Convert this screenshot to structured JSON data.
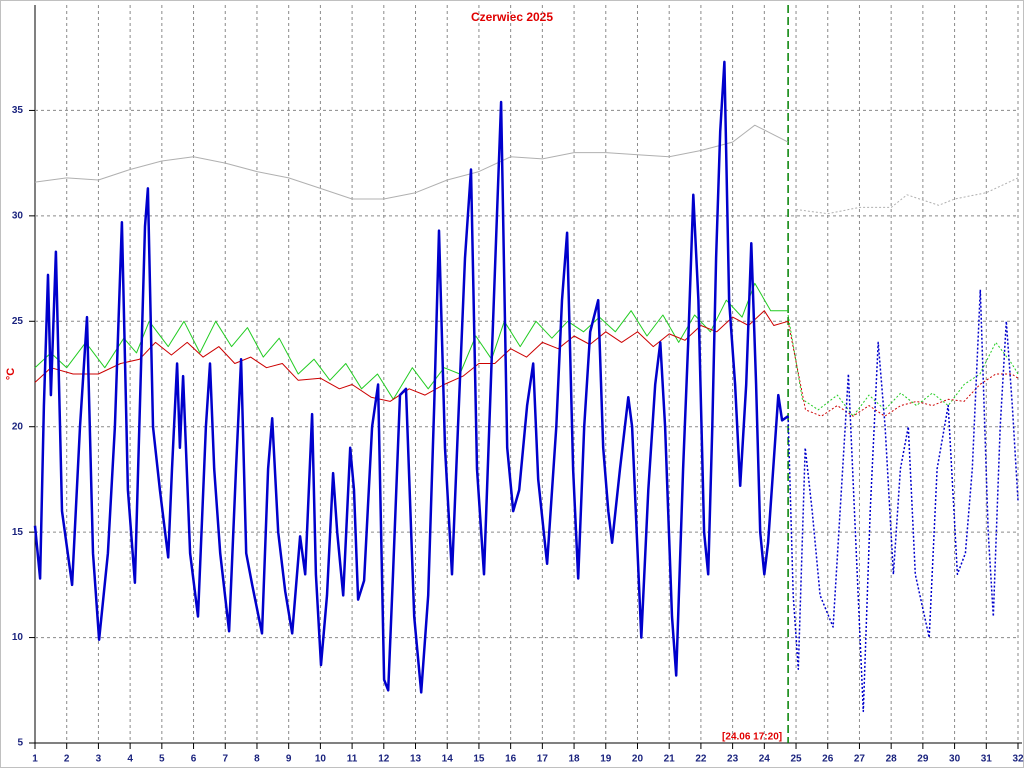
{
  "chart_data": {
    "type": "line",
    "title": "Czerwiec 2025",
    "y_label": "°C",
    "xlim": [
      1,
      32
    ],
    "ylim": [
      5,
      40
    ],
    "xticks": [
      1,
      2,
      3,
      4,
      5,
      6,
      7,
      8,
      9,
      10,
      11,
      12,
      13,
      14,
      15,
      16,
      17,
      18,
      19,
      20,
      21,
      22,
      23,
      24,
      25,
      26,
      27,
      28,
      29,
      30,
      31,
      32
    ],
    "yticks": [
      5,
      10,
      15,
      20,
      25,
      30,
      35
    ],
    "grid": true,
    "annotation": {
      "text": "[24.06 17:20]",
      "x": 24.75,
      "color": "#008000"
    },
    "series": [
      {
        "color": "#b0b0b0",
        "width": 1,
        "dashed": false,
        "x": [
          1,
          2,
          3,
          4,
          5,
          6,
          7,
          8,
          9,
          10,
          11,
          12,
          13,
          14,
          15,
          16,
          17,
          18,
          19,
          20,
          21,
          22,
          23,
          23.7,
          24.75
        ],
        "values": [
          31.6,
          31.8,
          31.7,
          32.2,
          32.6,
          32.8,
          32.5,
          32.1,
          31.8,
          31.3,
          30.8,
          30.8,
          31.1,
          31.7,
          32.1,
          32.8,
          32.7,
          33,
          33,
          32.9,
          32.8,
          33.1,
          33.5,
          34.3,
          33.5
        ]
      },
      {
        "color": "#b0b0b0",
        "width": 1,
        "dashed": true,
        "x": [
          25,
          26,
          27,
          28,
          28.5,
          29.5,
          30,
          31,
          32
        ],
        "values": [
          30.3,
          30.1,
          30.4,
          30.4,
          31,
          30.5,
          30.8,
          31.1,
          31.8
        ]
      },
      {
        "color": "#22cc22",
        "width": 1,
        "dashed": false,
        "x": [
          1,
          1.5,
          2,
          2.6,
          3.2,
          3.8,
          4.2,
          4.6,
          5.2,
          5.7,
          6.2,
          6.7,
          7.2,
          7.7,
          8.2,
          8.7,
          9.3,
          9.8,
          10.3,
          10.8,
          11.3,
          11.8,
          12.3,
          12.9,
          13.4,
          13.9,
          14.4,
          14.9,
          15.4,
          15.8,
          16.3,
          16.8,
          17.3,
          17.8,
          18.3,
          18.8,
          19.3,
          19.8,
          20.3,
          20.8,
          21.3,
          21.8,
          22.3,
          22.8,
          23.3,
          23.7,
          24.2,
          24.75
        ],
        "values": [
          22.8,
          23.5,
          22.8,
          24,
          22.8,
          24.2,
          23.5,
          25,
          23.8,
          25,
          23.5,
          25,
          23.8,
          24.7,
          23.3,
          24.2,
          22.5,
          23.2,
          22.2,
          23,
          21.8,
          22.5,
          21.3,
          22.8,
          21.8,
          22.8,
          22.5,
          24.3,
          23.2,
          25,
          23.8,
          25,
          24.2,
          25,
          24.5,
          25.2,
          24.5,
          25.5,
          24.3,
          25.3,
          24,
          25.3,
          24.5,
          26,
          25.2,
          26.8,
          25.5,
          25.5
        ]
      },
      {
        "color": "#22cc22",
        "width": 1,
        "dashed": true,
        "x": [
          24.75,
          25.2,
          25.7,
          26.3,
          26.8,
          27.3,
          27.8,
          28.3,
          28.8,
          29.3,
          29.8,
          30.3,
          30.8,
          31.3,
          31.8,
          32
        ],
        "values": [
          25.3,
          21.3,
          20.8,
          21.5,
          20.5,
          21.5,
          20.8,
          21.6,
          21,
          21.6,
          21,
          22,
          22.5,
          24,
          23,
          22.5
        ]
      },
      {
        "color": "#cc0000",
        "width": 1,
        "dashed": false,
        "x": [
          1,
          1.5,
          2.2,
          3,
          3.7,
          4.3,
          4.8,
          5.3,
          5.8,
          6.3,
          6.8,
          7.3,
          7.8,
          8.3,
          8.8,
          9.3,
          10,
          10.6,
          11,
          11.6,
          12.2,
          12.8,
          13.3,
          13.9,
          14.5,
          15,
          15.5,
          16,
          16.5,
          17,
          17.5,
          18,
          18.5,
          19,
          19.5,
          20,
          20.5,
          21,
          21.5,
          22,
          22.5,
          23,
          23.5,
          24,
          24.3,
          24.75
        ],
        "values": [
          22.1,
          22.8,
          22.5,
          22.5,
          23,
          23.2,
          24,
          23.4,
          24,
          23.3,
          23.8,
          23,
          23.3,
          22.8,
          23,
          22.2,
          22.3,
          21.8,
          22,
          21.4,
          21.2,
          21.8,
          21.5,
          22,
          22.4,
          23,
          23,
          23.7,
          23.3,
          24,
          23.7,
          24.3,
          23.9,
          24.5,
          24,
          24.5,
          23.8,
          24.4,
          24.1,
          24.8,
          24.5,
          25.2,
          24.8,
          25.5,
          24.8,
          25
        ]
      },
      {
        "color": "#cc0000",
        "width": 1,
        "dashed": true,
        "x": [
          24.75,
          25.3,
          25.8,
          26.3,
          26.8,
          27.3,
          27.8,
          28.3,
          28.8,
          29.3,
          29.8,
          30.3,
          30.8,
          31.3,
          31.8,
          32
        ],
        "values": [
          25,
          20.8,
          20.5,
          21,
          20.5,
          21,
          20.5,
          21,
          21.2,
          21,
          21.3,
          21.2,
          22,
          22.5,
          22.5,
          22.3
        ]
      },
      {
        "color": "#0000cc",
        "width": 2.5,
        "dashed": false,
        "x": [
          1.0,
          1.16,
          1.28,
          1.41,
          1.5,
          1.66,
          1.85,
          2.17,
          2.42,
          2.64,
          2.83,
          3.02,
          3.3,
          3.52,
          3.74,
          3.93,
          4.15,
          4.47,
          4.56,
          4.72,
          4.94,
          5.2,
          5.32,
          5.48,
          5.57,
          5.67,
          5.89,
          6.14,
          6.39,
          6.52,
          6.65,
          6.84,
          7.12,
          7.34,
          7.5,
          7.66,
          7.85,
          8.16,
          8.35,
          8.48,
          8.67,
          8.89,
          9.11,
          9.36,
          9.52,
          9.74,
          9.86,
          10.02,
          10.21,
          10.4,
          10.53,
          10.72,
          10.94,
          11.06,
          11.19,
          11.38,
          11.63,
          11.82,
          12.01,
          12.14,
          12.29,
          12.51,
          12.7,
          12.96,
          13.18,
          13.4,
          13.59,
          13.74,
          13.93,
          14.15,
          14.34,
          14.56,
          14.75,
          14.94,
          15.16,
          15.42,
          15.7,
          15.89,
          16.08,
          16.27,
          16.52,
          16.71,
          16.87,
          17.15,
          17.44,
          17.62,
          17.78,
          17.97,
          18.13,
          18.32,
          18.51,
          18.76,
          18.92,
          19.08,
          19.2,
          19.45,
          19.71,
          19.83,
          20.12,
          20.34,
          20.56,
          20.72,
          20.87,
          21.09,
          21.22,
          21.44,
          21.6,
          21.76,
          21.92,
          22.1,
          22.23,
          22.36,
          22.48,
          22.61,
          22.74,
          22.89,
          23.08,
          23.24,
          23.43,
          23.59,
          23.74,
          23.87,
          24.0,
          24.12,
          24.28,
          24.44,
          24.56,
          24.75
        ],
        "values": [
          15.3,
          12.8,
          21,
          27.2,
          21.5,
          28.3,
          16,
          12.5,
          20,
          25.2,
          14,
          9.9,
          14,
          20,
          29.7,
          17,
          12.6,
          29.5,
          31.3,
          20,
          17,
          13.8,
          18,
          23,
          19,
          22.4,
          14,
          11,
          20,
          23,
          18,
          14,
          10.3,
          18,
          23.2,
          14,
          12.5,
          10.2,
          18,
          20.4,
          15,
          12.2,
          10.2,
          14.8,
          13,
          20.6,
          13,
          8.7,
          12,
          17.8,
          15,
          12,
          19,
          17,
          11.8,
          12.7,
          20,
          22,
          8,
          7.5,
          13,
          21.5,
          21.8,
          11,
          7.4,
          12,
          21,
          29.3,
          19,
          13,
          20,
          28,
          32.2,
          18,
          13,
          24,
          35.4,
          19,
          16,
          17,
          21,
          23,
          17.5,
          13.5,
          20,
          26,
          29.2,
          18,
          12.8,
          20,
          24.5,
          26,
          19,
          16,
          14.5,
          18,
          21.4,
          20,
          10,
          17,
          22,
          24,
          20,
          11,
          8.2,
          18,
          24,
          31,
          26,
          15,
          13,
          20,
          28,
          34,
          37.3,
          26,
          22,
          17.2,
          22,
          28.7,
          22,
          15,
          13,
          14.5,
          18,
          21.5,
          20.3,
          20.5
        ]
      },
      {
        "color": "#0000cc",
        "width": 1.5,
        "dashed": true,
        "x": [
          24.75,
          24.91,
          25.07,
          25.29,
          25.51,
          25.76,
          26.17,
          26.65,
          26.9,
          27.12,
          27.34,
          27.59,
          27.81,
          28.07,
          28.29,
          28.54,
          28.76,
          29.2,
          29.45,
          29.8,
          30.09,
          30.34,
          30.56,
          30.81,
          31.06,
          31.22,
          31.44,
          31.63,
          31.82,
          32
        ],
        "values": [
          20.5,
          12,
          8.5,
          19,
          16,
          12,
          10.5,
          22.5,
          14,
          6.5,
          16,
          24,
          20,
          13,
          18,
          20,
          13,
          10,
          18,
          21,
          13,
          14,
          18,
          26.5,
          15,
          11,
          20,
          25,
          21,
          16.5
        ]
      }
    ]
  }
}
